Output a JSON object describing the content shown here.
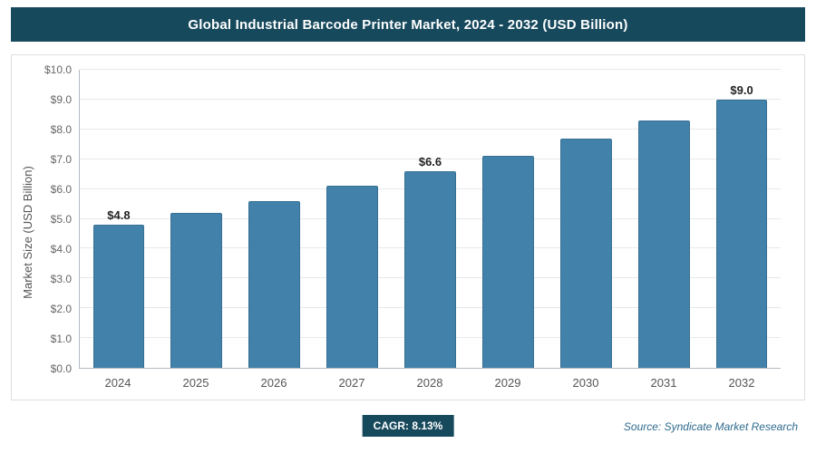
{
  "header": {
    "title": "Global Industrial Barcode Printer Market, 2024 - 2032 (USD Billion)"
  },
  "footer": {
    "cagr_badge": "CAGR: 8.13%",
    "source": "Source: Syndicate Market Research"
  },
  "colors": {
    "header_bg": "#17495d",
    "badge_bg": "#17495d",
    "bar": "#4282aa",
    "bar_border": "#376f93",
    "source_text": "#2f6b8f",
    "gridline": "#e6e9ec"
  },
  "chart_data": {
    "type": "bar",
    "title": "Global Industrial Barcode Printer Market, 2024 - 2032 (USD Billion)",
    "categories": [
      "2024",
      "2025",
      "2026",
      "2027",
      "2028",
      "2029",
      "2030",
      "2031",
      "2032"
    ],
    "values": [
      4.8,
      5.2,
      5.6,
      6.1,
      6.6,
      7.1,
      7.7,
      8.3,
      9.0
    ],
    "data_labels": [
      "$4.8",
      "",
      "",
      "",
      "$6.6",
      "",
      "",
      "",
      "$9.0"
    ],
    "xlabel": "",
    "ylabel": "Market Size (USD Billion)",
    "ylim": [
      0,
      10
    ],
    "ytick_step": 1,
    "ytick_labels": [
      "$0.0",
      "$1.0",
      "$2.0",
      "$3.0",
      "$4.0",
      "$5.0",
      "$6.0",
      "$7.0",
      "$8.0",
      "$9.0",
      "$10.0"
    ],
    "grid": true,
    "legend": false,
    "bar_color": "#4282aa",
    "bar_border_color": "#376f93",
    "annotations": [
      "CAGR: 8.13%",
      "Source: Syndicate Market Research"
    ]
  }
}
